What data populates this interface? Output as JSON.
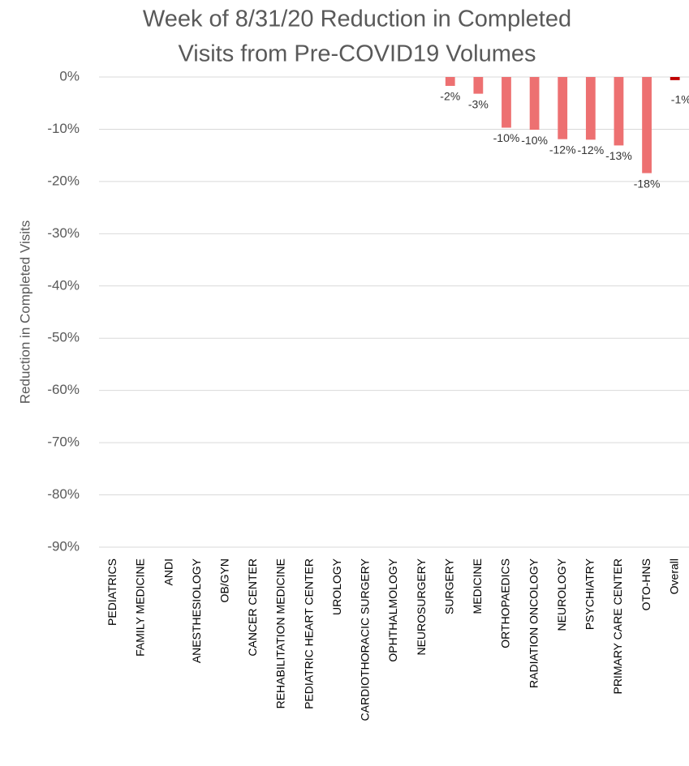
{
  "chart_data": {
    "type": "bar",
    "title": [
      "Week of 8/31/20 Reduction in Completed",
      "Visits from Pre-COVID19 Volumes"
    ],
    "y_label": "Reduction in Completed Visits",
    "categories": [
      "PEDIATRICS",
      "FAMILY MEDICINE",
      "ANDI",
      "ANESTHESIOLOGY",
      "OB/GYN",
      "CANCER CENTER",
      "REHABILITATION MEDICINE",
      "PEDIATRIC HEART CENTER",
      "UROLOGY",
      "CARDIOTHORACIC SURGERY",
      "OPHTHALMOLOGY",
      "NEUROSURGERY",
      "SURGERY",
      "MEDICINE",
      "ORTHOPAEDICS",
      "RADIATION ONCOLOGY",
      "NEUROLOGY",
      "PSYCHIATRY",
      "PRIMARY CARE CENTER",
      "OTO-HNS",
      "Overall"
    ],
    "values": [
      null,
      null,
      null,
      null,
      null,
      null,
      null,
      null,
      null,
      null,
      null,
      null,
      -1.7,
      -3.2,
      -9.7,
      -10.1,
      -11.9,
      -12.0,
      -13.1,
      -18.4,
      -0.6
    ],
    "value_labels": [
      null,
      null,
      null,
      null,
      null,
      null,
      null,
      null,
      null,
      null,
      null,
      null,
      "-2%",
      "-3%",
      "-10%",
      "-10%",
      "-12%",
      "-12%",
      "-13%",
      "-18%",
      "-1%"
    ],
    "colors": [
      "#ed7071",
      "#ed7071",
      "#ed7071",
      "#ed7071",
      "#ed7071",
      "#ed7071",
      "#ed7071",
      "#ed7071",
      "#ed7071",
      "#ed7071",
      "#ed7071",
      "#ed7071",
      "#ed7071",
      "#ed7071",
      "#ed7071",
      "#ed7071",
      "#ed7071",
      "#ed7071",
      "#ed7071",
      "#ed7071",
      "#c00000"
    ],
    "ylim": [
      -90,
      0
    ],
    "yticks": [
      {
        "value": 0,
        "label": "0%"
      },
      {
        "value": -10,
        "label": "-10%"
      },
      {
        "value": -20,
        "label": "-20%"
      },
      {
        "value": -30,
        "label": "-30%"
      },
      {
        "value": -40,
        "label": "-40%"
      },
      {
        "value": -50,
        "label": "-50%"
      },
      {
        "value": -60,
        "label": "-60%"
      },
      {
        "value": -70,
        "label": "-70%"
      },
      {
        "value": -80,
        "label": "-80%"
      },
      {
        "value": -90,
        "label": "-90%"
      }
    ],
    "grid": true
  }
}
